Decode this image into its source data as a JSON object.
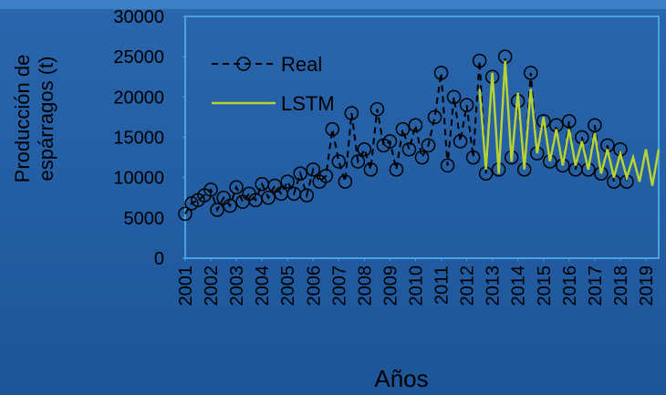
{
  "chart_data": {
    "type": "line",
    "ylabel": [
      "Producción de",
      "espárragos (t)"
    ],
    "xlabel": "Años",
    "ylim": [
      0,
      30000
    ],
    "yticks": [
      0,
      5000,
      10000,
      15000,
      20000,
      25000,
      30000
    ],
    "xlim": [
      2001,
      2019.5
    ],
    "xticks": [
      2001,
      2002,
      2003,
      2004,
      2005,
      2006,
      2007,
      2008,
      2009,
      2010,
      2011,
      2012,
      2013,
      2014,
      2015,
      2016,
      2017,
      2018,
      2019
    ],
    "legend": "top-left",
    "series": [
      {
        "name": "Real",
        "color": "#000000",
        "x": [
          2001,
          2001.25,
          2001.5,
          2001.75,
          2002,
          2002.25,
          2002.5,
          2002.75,
          2003,
          2003.25,
          2003.5,
          2003.75,
          2004,
          2004.25,
          2004.5,
          2004.75,
          2005,
          2005.25,
          2005.5,
          2005.75,
          2006,
          2006.25,
          2006.5,
          2006.75,
          2007,
          2007.25,
          2007.5,
          2007.75,
          2008,
          2008.25,
          2008.5,
          2008.75,
          2009,
          2009.25,
          2009.5,
          2009.75,
          2010,
          2010.25,
          2010.5,
          2010.75,
          2011,
          2011.25,
          2011.5,
          2011.75,
          2012,
          2012.25,
          2012.5,
          2012.75,
          2013,
          2013.25,
          2013.5,
          2013.75,
          2014,
          2014.25,
          2014.5,
          2014.75,
          2015,
          2015.25,
          2015.5,
          2015.75,
          2016,
          2016.25,
          2016.5,
          2016.75,
          2017,
          2017.25,
          2017.5,
          2017.75,
          2018,
          2018.25
        ],
        "values": [
          5500,
          6800,
          7200,
          7800,
          8500,
          6000,
          7500,
          6500,
          8800,
          7000,
          8000,
          7200,
          9200,
          7500,
          9000,
          8000,
          9500,
          8000,
          10500,
          7800,
          11000,
          9500,
          10200,
          16000,
          12000,
          9500,
          18000,
          12000,
          13500,
          11000,
          18500,
          14000,
          14500,
          11000,
          16000,
          13500,
          16500,
          12500,
          14000,
          17500,
          23000,
          11500,
          20000,
          14500,
          19000,
          12500,
          24500,
          10500,
          22500,
          11000,
          25000,
          12500,
          19500,
          11000,
          23000,
          13000,
          17000,
          12000,
          16500,
          11500,
          17000,
          11000,
          15000,
          11000,
          16500,
          10500,
          14000,
          9500,
          13500,
          9500
        ]
      },
      {
        "name": "LSTM",
        "color": "#b5d334",
        "x": [
          2012.5,
          2012.75,
          2013,
          2013.25,
          2013.5,
          2013.75,
          2014,
          2014.25,
          2014.5,
          2014.75,
          2015,
          2015.25,
          2015.5,
          2015.75,
          2016,
          2016.25,
          2016.5,
          2016.75,
          2017,
          2017.25,
          2017.5,
          2017.75,
          2018,
          2018.25,
          2018.5,
          2018.75,
          2019,
          2019.25,
          2019.5
        ],
        "values": [
          21000,
          11000,
          23000,
          10500,
          24500,
          12000,
          20500,
          11000,
          21000,
          13000,
          17500,
          12000,
          16000,
          11500,
          16000,
          11500,
          14500,
          11000,
          15500,
          10500,
          13500,
          10000,
          13000,
          10000,
          12500,
          9500,
          13500,
          9000,
          13500
        ]
      }
    ]
  }
}
